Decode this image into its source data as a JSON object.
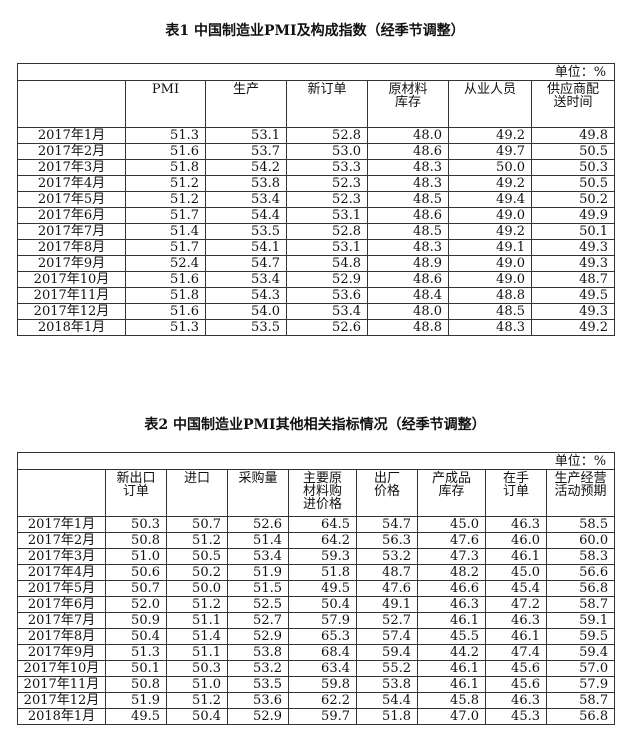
{
  "table1": {
    "title": "表1  中国制造业PMI及构成指数（经季节调整）",
    "unit": "单位：%",
    "headers": [
      [
        "PMI"
      ],
      [
        "生产"
      ],
      [
        "新订单"
      ],
      [
        "原材料",
        "库存"
      ],
      [
        "从业人员"
      ],
      [
        "供应商配",
        "送时间"
      ]
    ],
    "rows": [
      [
        "2017年1月",
        "51.3",
        "53.1",
        "52.8",
        "48.0",
        "49.2",
        "49.8"
      ],
      [
        "2017年2月",
        "51.6",
        "53.7",
        "53.0",
        "48.6",
        "49.7",
        "50.5"
      ],
      [
        "2017年3月",
        "51.8",
        "54.2",
        "53.3",
        "48.3",
        "50.0",
        "50.3"
      ],
      [
        "2017年4月",
        "51.2",
        "53.8",
        "52.3",
        "48.3",
        "49.2",
        "50.5"
      ],
      [
        "2017年5月",
        "51.2",
        "53.4",
        "52.3",
        "48.5",
        "49.4",
        "50.2"
      ],
      [
        "2017年6月",
        "51.7",
        "54.4",
        "53.1",
        "48.6",
        "49.0",
        "49.9"
      ],
      [
        "2017年7月",
        "51.4",
        "53.5",
        "52.8",
        "48.5",
        "49.2",
        "50.1"
      ],
      [
        "2017年8月",
        "51.7",
        "54.1",
        "53.1",
        "48.3",
        "49.1",
        "49.3"
      ],
      [
        "2017年9月",
        "52.4",
        "54.7",
        "54.8",
        "48.9",
        "49.0",
        "49.3"
      ],
      [
        "2017年10月",
        "51.6",
        "53.4",
        "52.9",
        "48.6",
        "49.0",
        "48.7"
      ],
      [
        "2017年11月",
        "51.8",
        "54.3",
        "53.6",
        "48.4",
        "48.8",
        "49.5"
      ],
      [
        "2017年12月",
        "51.6",
        "54.0",
        "53.4",
        "48.0",
        "48.5",
        "49.3"
      ],
      [
        "2018年1月",
        "51.3",
        "53.5",
        "52.6",
        "48.8",
        "48.3",
        "49.2"
      ]
    ]
  },
  "table2": {
    "title": "表2  中国制造业PMI其他相关指标情况（经季节调整）",
    "unit": "单位：%",
    "headers": [
      [
        "新出口",
        "订单"
      ],
      [
        "进口"
      ],
      [
        "采购量"
      ],
      [
        "主要原",
        "材料购",
        "进价格"
      ],
      [
        "出厂",
        "价格"
      ],
      [
        "产成品",
        "库存"
      ],
      [
        "在手",
        "订单"
      ],
      [
        "生产经营",
        "活动预期"
      ]
    ],
    "rows": [
      [
        "2017年1月",
        "50.3",
        "50.7",
        "52.6",
        "64.5",
        "54.7",
        "45.0",
        "46.3",
        "58.5"
      ],
      [
        "2017年2月",
        "50.8",
        "51.2",
        "51.4",
        "64.2",
        "56.3",
        "47.6",
        "46.0",
        "60.0"
      ],
      [
        "2017年3月",
        "51.0",
        "50.5",
        "53.4",
        "59.3",
        "53.2",
        "47.3",
        "46.1",
        "58.3"
      ],
      [
        "2017年4月",
        "50.6",
        "50.2",
        "51.9",
        "51.8",
        "48.7",
        "48.2",
        "45.0",
        "56.6"
      ],
      [
        "2017年5月",
        "50.7",
        "50.0",
        "51.5",
        "49.5",
        "47.6",
        "46.6",
        "45.4",
        "56.8"
      ],
      [
        "2017年6月",
        "52.0",
        "51.2",
        "52.5",
        "50.4",
        "49.1",
        "46.3",
        "47.2",
        "58.7"
      ],
      [
        "2017年7月",
        "50.9",
        "51.1",
        "52.7",
        "57.9",
        "52.7",
        "46.1",
        "46.3",
        "59.1"
      ],
      [
        "2017年8月",
        "50.4",
        "51.4",
        "52.9",
        "65.3",
        "57.4",
        "45.5",
        "46.1",
        "59.5"
      ],
      [
        "2017年9月",
        "51.3",
        "51.1",
        "53.8",
        "68.4",
        "59.4",
        "44.2",
        "47.4",
        "59.4"
      ],
      [
        "2017年10月",
        "50.1",
        "50.3",
        "53.2",
        "63.4",
        "55.2",
        "46.1",
        "45.6",
        "57.0"
      ],
      [
        "2017年11月",
        "50.8",
        "51.0",
        "53.5",
        "59.8",
        "53.8",
        "46.1",
        "45.6",
        "57.9"
      ],
      [
        "2017年12月",
        "51.9",
        "51.2",
        "53.6",
        "62.2",
        "54.4",
        "45.8",
        "46.3",
        "58.7"
      ],
      [
        "2018年1月",
        "49.5",
        "50.4",
        "52.9",
        "59.7",
        "51.8",
        "47.0",
        "45.3",
        "56.8"
      ]
    ]
  }
}
